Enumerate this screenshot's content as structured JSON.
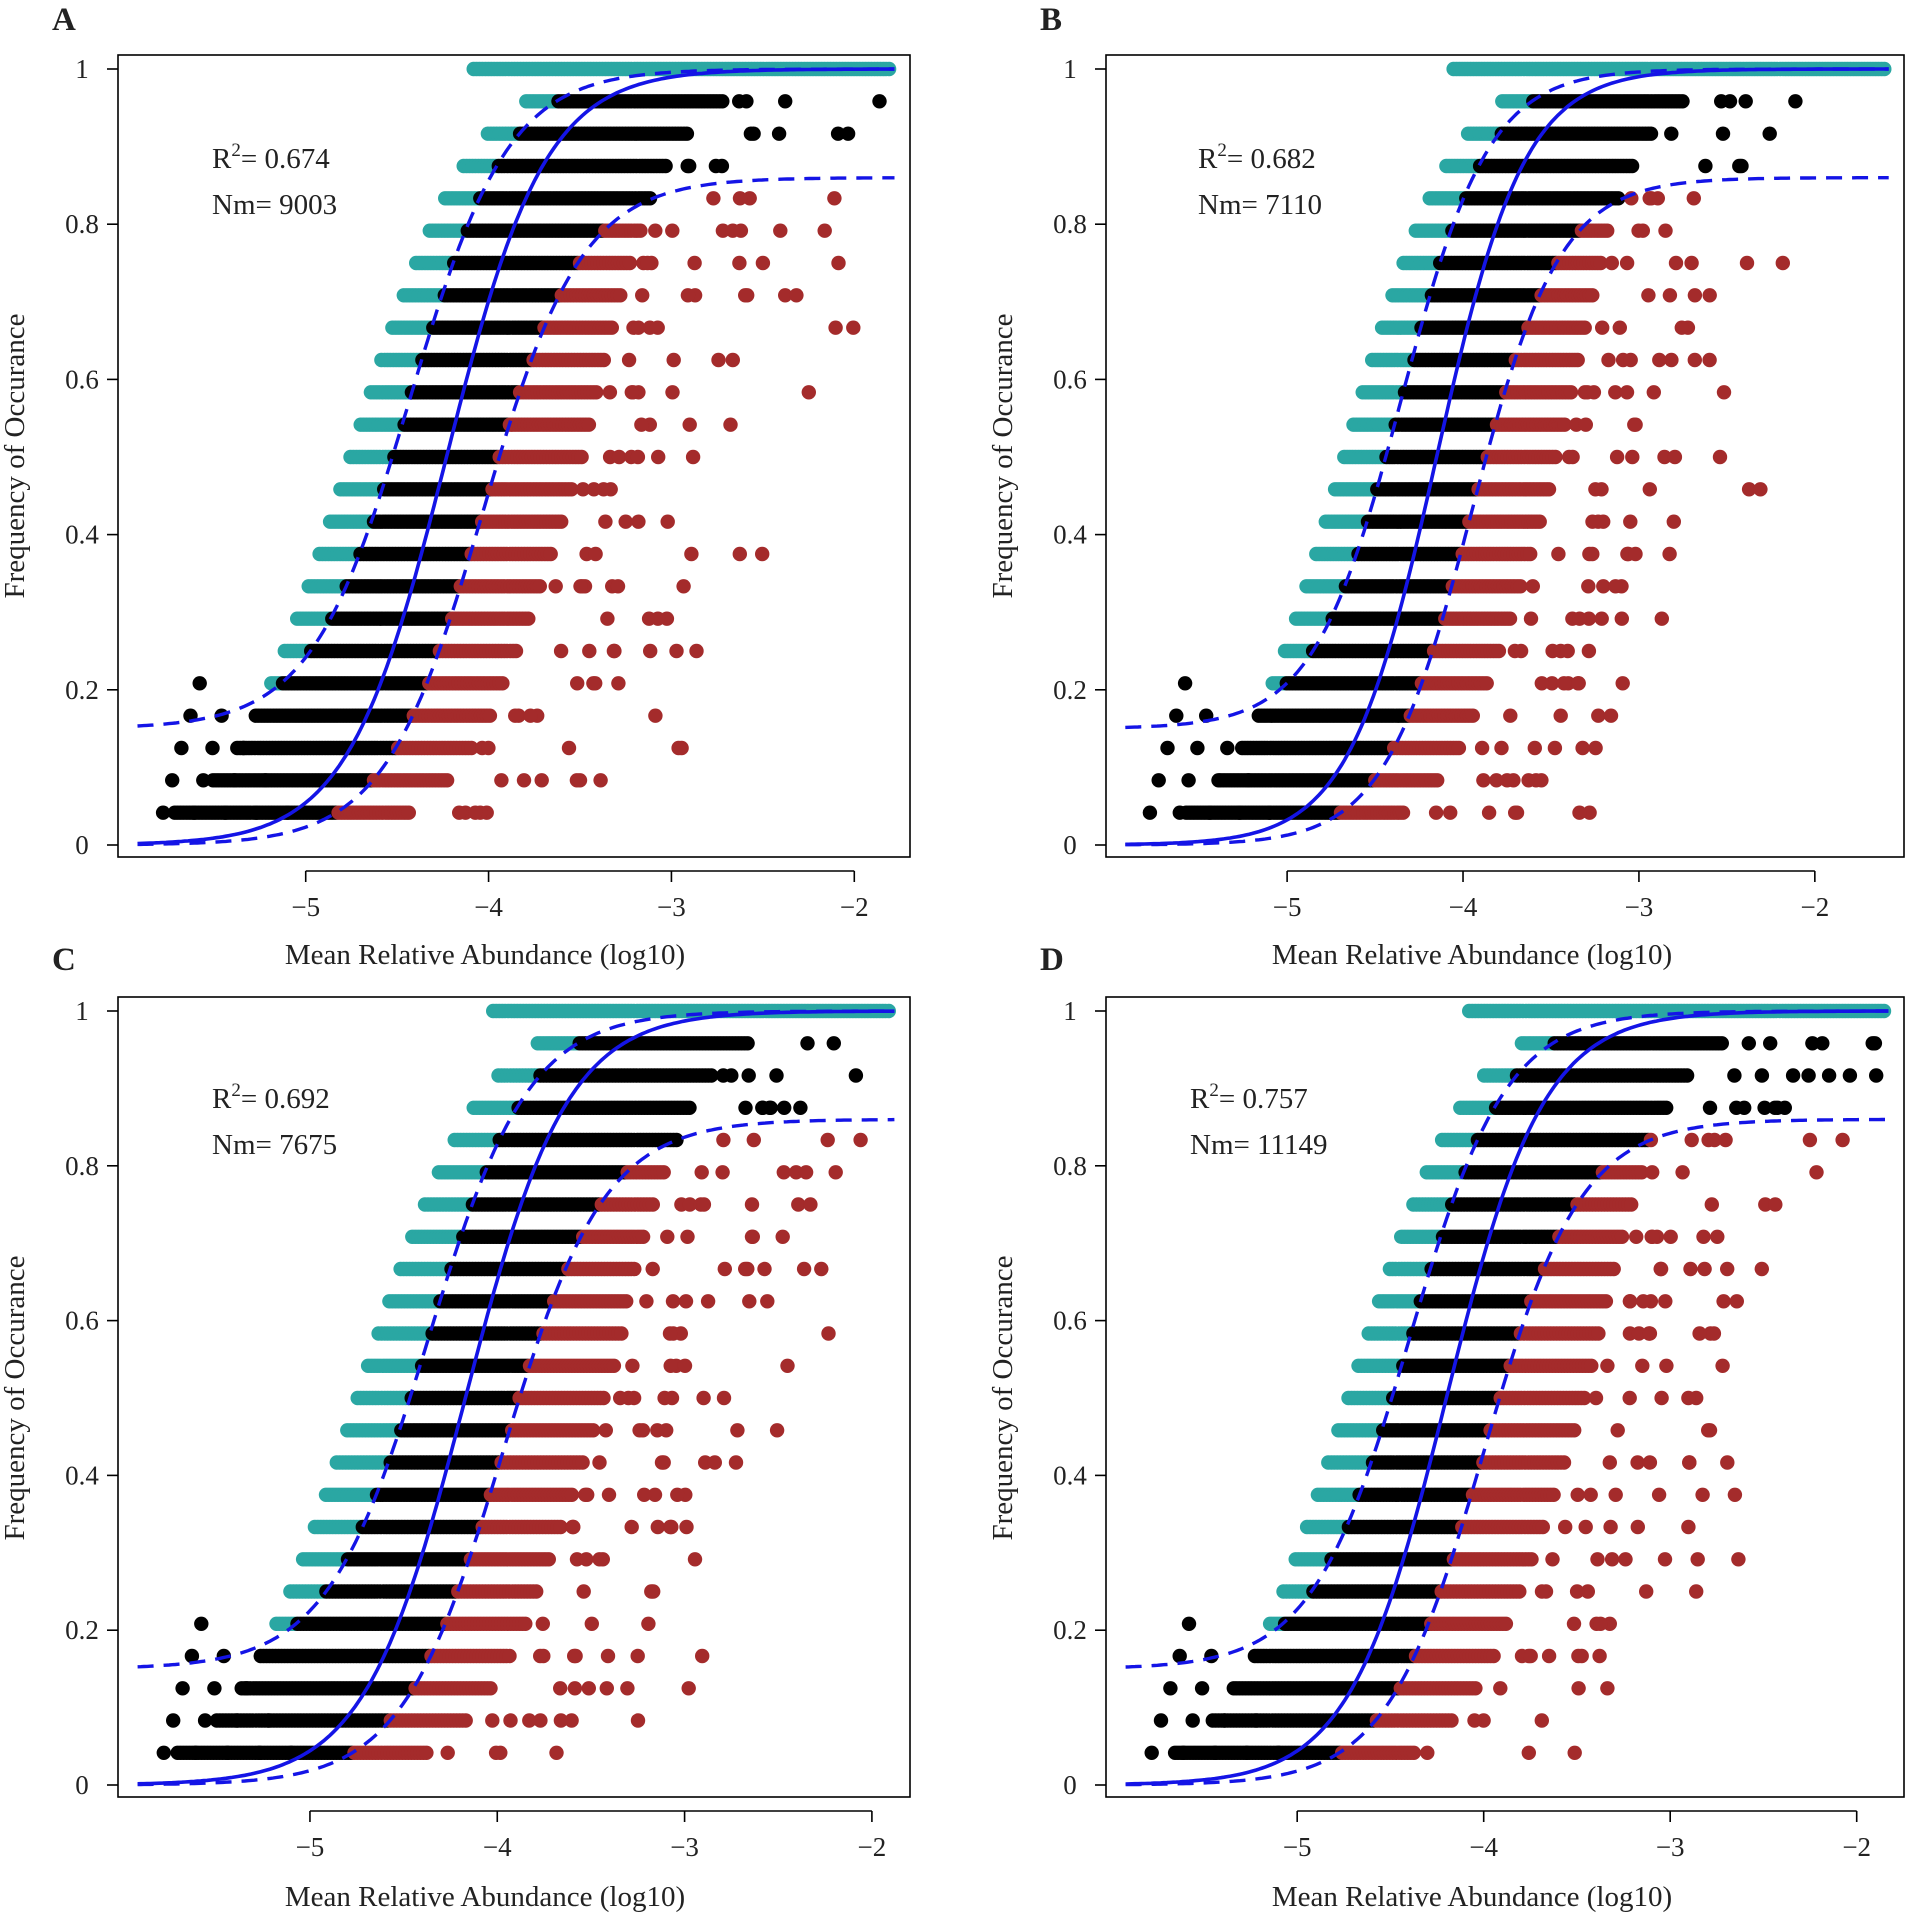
{
  "figure": {
    "background": "#ffffff"
  },
  "chart_data": [
    {
      "type": "scatter",
      "panel": "A",
      "xlabel": "Mean Relative Abundance (log10)",
      "ylabel": "Frequency of Occurance",
      "xlim": [
        -5.95,
        -1.75
      ],
      "ylim": [
        0,
        1
      ],
      "xticks": [
        -5,
        -4,
        -3,
        -2
      ],
      "xtick_labels": [
        "−5",
        "−4",
        "−3",
        "−2"
      ],
      "yticks": [
        0,
        0.2,
        0.4,
        0.6,
        0.8,
        1
      ],
      "ytick_labels": [
        "0",
        "0.2",
        "0.4",
        "0.6",
        "0.8",
        "1"
      ],
      "r2_prefix": "R",
      "r2_sup": "2",
      "r2_value": "= 0.674",
      "nm_text": "Nm= 9003",
      "model": {
        "x0": -4.23,
        "scale": 0.27,
        "ci_offset": 0.2,
        "lower_max": 0.86,
        "upper_min": 0.15
      },
      "spread": {
        "below_extra": 1.3,
        "above_extra": 0.4,
        "bulk_extra": 0.55,
        "max_x": -1.8
      },
      "series": [
        {
          "name": "above prediction",
          "color": "#2aa7a3"
        },
        {
          "name": "within prediction",
          "color": "#000000"
        },
        {
          "name": "below prediction",
          "color": "#a42b2b"
        }
      ],
      "line_colors": {
        "fit": "#1414e6",
        "ci": "#1414e6"
      }
    },
    {
      "type": "scatter",
      "panel": "B",
      "xlabel": "Mean Relative Abundance (log10)",
      "ylabel": "Frequency of Occurance",
      "xlim": [
        -5.95,
        -1.55
      ],
      "ylim": [
        0,
        1
      ],
      "xticks": [
        -5,
        -4,
        -3,
        -2
      ],
      "xtick_labels": [
        "−5",
        "−4",
        "−3",
        "−2"
      ],
      "yticks": [
        0,
        0.2,
        0.4,
        0.6,
        0.8,
        1
      ],
      "ytick_labels": [
        "0",
        "0.2",
        "0.4",
        "0.6",
        "0.8",
        "1"
      ],
      "r2_prefix": "R",
      "r2_sup": "2",
      "r2_value": "= 0.682",
      "nm_text": "Nm= 7110",
      "model": {
        "x0": -4.15,
        "scale": 0.25,
        "ci_offset": 0.2,
        "lower_max": 0.86,
        "upper_min": 0.15
      },
      "spread": {
        "below_extra": 1.2,
        "above_extra": 0.4,
        "bulk_extra": 0.5,
        "max_x": -1.6
      },
      "series": [
        {
          "name": "above prediction",
          "color": "#2aa7a3"
        },
        {
          "name": "within prediction",
          "color": "#000000"
        },
        {
          "name": "below prediction",
          "color": "#a42b2b"
        }
      ],
      "line_colors": {
        "fit": "#1414e6",
        "ci": "#1414e6"
      }
    },
    {
      "type": "scatter",
      "panel": "C",
      "xlabel": "Mean Relative Abundance (log10)",
      "ylabel": "Frequency of Occurance",
      "xlim": [
        -5.95,
        -1.85
      ],
      "ylim": [
        0,
        1
      ],
      "xticks": [
        -5,
        -4,
        -3,
        -2
      ],
      "xtick_labels": [
        "−5",
        "−4",
        "−3",
        "−2"
      ],
      "yticks": [
        0,
        0.2,
        0.4,
        0.6,
        0.8,
        1
      ],
      "ytick_labels": [
        "0",
        "0.2",
        "0.4",
        "0.6",
        "0.8",
        "1"
      ],
      "r2_prefix": "R",
      "r2_sup": "2",
      "r2_value": "= 0.692",
      "nm_text": "Nm= 7675",
      "model": {
        "x0": -4.17,
        "scale": 0.27,
        "ci_offset": 0.2,
        "lower_max": 0.86,
        "upper_min": 0.15
      },
      "spread": {
        "below_extra": 1.2,
        "above_extra": 0.45,
        "bulk_extra": 0.55,
        "max_x": -1.9
      },
      "series": [
        {
          "name": "above prediction",
          "color": "#2aa7a3"
        },
        {
          "name": "within prediction",
          "color": "#000000"
        },
        {
          "name": "below prediction",
          "color": "#a42b2b"
        }
      ],
      "line_colors": {
        "fit": "#1414e6",
        "ci": "#1414e6"
      }
    },
    {
      "type": "scatter",
      "panel": "D",
      "xlabel": "Mean Relative Abundance (log10)",
      "ylabel": "Frequency of Occurance",
      "xlim": [
        -5.95,
        -1.8
      ],
      "ylim": [
        0,
        1
      ],
      "xticks": [
        -5,
        -4,
        -3,
        -2
      ],
      "xtick_labels": [
        "−5",
        "−4",
        "−3",
        "−2"
      ],
      "yticks": [
        0,
        0.2,
        0.4,
        0.6,
        0.8,
        1
      ],
      "ytick_labels": [
        "0",
        "0.2",
        "0.4",
        "0.6",
        "0.8",
        "1"
      ],
      "r2_prefix": "R",
      "r2_sup": "2",
      "r2_value": "= 0.757",
      "nm_text": "Nm= 11149",
      "model": {
        "x0": -4.2,
        "scale": 0.26,
        "ci_offset": 0.2,
        "lower_max": 0.86,
        "upper_min": 0.15
      },
      "spread": {
        "below_extra": 1.3,
        "above_extra": 0.4,
        "bulk_extra": 0.55,
        "max_x": -1.85
      },
      "series": [
        {
          "name": "above prediction",
          "color": "#2aa7a3"
        },
        {
          "name": "within prediction",
          "color": "#000000"
        },
        {
          "name": "below prediction",
          "color": "#a42b2b"
        }
      ],
      "line_colors": {
        "fit": "#1414e6",
        "ci": "#1414e6"
      }
    }
  ]
}
